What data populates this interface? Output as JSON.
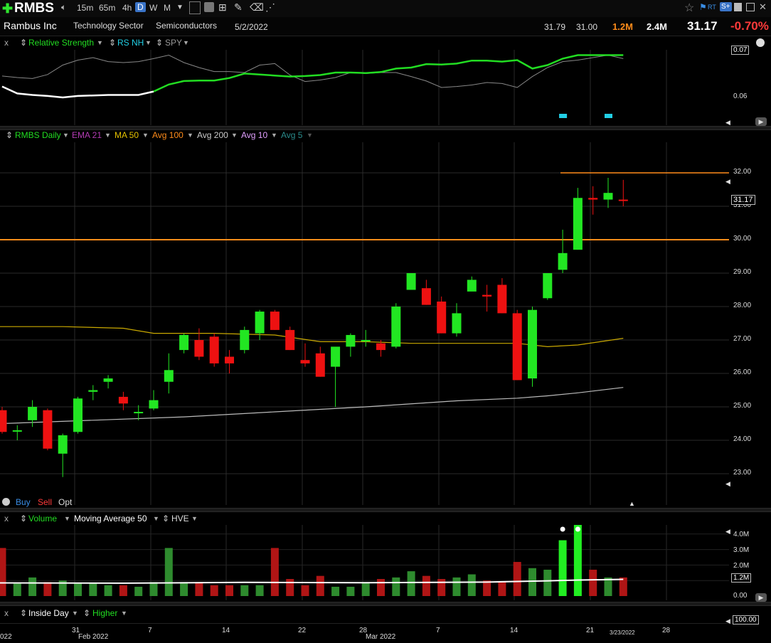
{
  "toolbar": {
    "symbol": "RMBS",
    "intervals": [
      "15m",
      "65m",
      "4h",
      "D",
      "W",
      "M"
    ],
    "active_interval": "D"
  },
  "info": {
    "company": "Rambus Inc",
    "sector": "Technology Sector",
    "industry": "Semiconductors",
    "date": "5/2/2022",
    "high": "31.79",
    "low": "31.00",
    "volume": "1.2M",
    "avg_volume": "2.4M",
    "last": "31.17",
    "change_pct": "-0.70%"
  },
  "rs_pane": {
    "close": "x",
    "title": "Relative Strength",
    "item2": "RS NH",
    "item3": "SPY",
    "labels": [
      "0.07",
      "0.06"
    ]
  },
  "price_pane": {
    "legend": [
      {
        "label": "RMBS Daily",
        "color": "#22dd22"
      },
      {
        "label": "EMA 21",
        "color": "#b43cb4"
      },
      {
        "label": "MA 50",
        "color": "#e6c200"
      },
      {
        "label": "Avg 100",
        "color": "#ff8c1a"
      },
      {
        "label": "Avg 200",
        "color": "#cccccc"
      },
      {
        "label": "Avg 10",
        "color": "#e2a0ff"
      },
      {
        "label": "Avg 5",
        "color": "#2a8c8c"
      }
    ],
    "price_labels": [
      "32.00",
      "31.00",
      "30.00",
      "29.00",
      "28.00",
      "27.00",
      "26.00",
      "25.00",
      "24.00",
      "23.00"
    ],
    "last_price": "31.17",
    "buy": "Buy",
    "sell": "Sell",
    "opt": "Opt"
  },
  "volume_pane": {
    "close": "x",
    "title": "Volume",
    "ma": "Moving Average 50",
    "hve": "HVE",
    "labels": [
      "4.0M",
      "3.0M",
      "2.0M",
      "1.2M",
      "0.00"
    ]
  },
  "inside_pane": {
    "close": "x",
    "title": "Inside Day",
    "higher": "Higher",
    "label": "100.00"
  },
  "x_axis": {
    "labels": [
      "022",
      "31",
      "Feb 2022",
      "7",
      "14",
      "22",
      "28",
      "Mar 2022",
      "7",
      "14",
      "21",
      "3/23/2022",
      "28"
    ]
  },
  "chart_data": {
    "type": "candlestick",
    "ylim": [
      22.5,
      33.0
    ],
    "candles": [
      [
        24.9,
        25.0,
        24.2,
        24.25
      ],
      [
        24.3,
        24.45,
        24.0,
        24.3
      ],
      [
        24.6,
        25.2,
        24.4,
        25.0
      ],
      [
        24.9,
        24.95,
        23.7,
        23.75
      ],
      [
        23.6,
        24.2,
        22.9,
        24.15
      ],
      [
        24.25,
        25.3,
        24.2,
        25.25
      ],
      [
        25.45,
        25.65,
        25.2,
        25.5
      ],
      [
        25.75,
        25.95,
        25.55,
        25.85
      ],
      [
        25.3,
        25.45,
        24.9,
        25.1
      ],
      [
        24.85,
        25.05,
        24.6,
        24.85
      ],
      [
        24.95,
        25.5,
        24.9,
        25.2
      ],
      [
        25.75,
        26.6,
        25.4,
        26.1
      ],
      [
        26.7,
        27.2,
        26.6,
        27.15
      ],
      [
        27.0,
        27.35,
        26.4,
        26.5
      ],
      [
        27.1,
        27.2,
        26.2,
        26.3
      ],
      [
        26.5,
        26.7,
        26.0,
        26.3
      ],
      [
        26.7,
        27.4,
        26.6,
        27.3
      ],
      [
        27.2,
        27.9,
        27.0,
        27.85
      ],
      [
        27.85,
        27.9,
        27.3,
        27.3
      ],
      [
        27.3,
        27.4,
        26.7,
        26.7
      ],
      [
        26.4,
        26.9,
        26.2,
        26.3
      ],
      [
        26.6,
        26.8,
        25.9,
        25.9
      ],
      [
        26.2,
        26.75,
        25.0,
        26.8
      ],
      [
        26.8,
        27.2,
        26.5,
        27.15
      ],
      [
        27.0,
        27.3,
        26.8,
        27.0
      ],
      [
        26.9,
        27.0,
        26.5,
        26.7
      ],
      [
        26.8,
        28.1,
        26.75,
        28.0
      ],
      [
        28.5,
        29.0,
        28.5,
        29.0
      ],
      [
        28.55,
        28.8,
        28.05,
        28.05
      ],
      [
        28.15,
        28.3,
        27.2,
        27.2
      ],
      [
        27.2,
        28.1,
        27.1,
        27.8
      ],
      [
        28.45,
        28.9,
        28.5,
        28.8
      ],
      [
        28.35,
        28.65,
        27.85,
        28.3
      ],
      [
        28.65,
        28.85,
        27.8,
        27.8
      ],
      [
        27.8,
        27.9,
        25.8,
        25.8
      ],
      [
        25.85,
        28.0,
        25.6,
        27.9
      ],
      [
        28.25,
        29.0,
        28.2,
        29.0
      ],
      [
        29.1,
        30.3,
        29.0,
        29.6
      ],
      [
        29.7,
        31.55,
        29.7,
        31.25
      ],
      [
        31.25,
        31.6,
        30.75,
        31.2
      ],
      [
        31.2,
        31.85,
        30.95,
        31.4
      ],
      [
        31.2,
        31.79,
        31.0,
        31.17
      ]
    ],
    "ma50": [
      [
        0,
        27.4
      ],
      [
        4,
        27.4
      ],
      [
        8,
        27.35
      ],
      [
        10,
        27.2
      ],
      [
        14,
        27.2
      ],
      [
        18,
        27.15
      ],
      [
        21,
        26.95
      ],
      [
        24,
        26.95
      ],
      [
        27,
        26.9
      ],
      [
        30,
        26.9
      ],
      [
        34,
        26.9
      ],
      [
        36,
        26.8
      ],
      [
        38,
        26.85
      ],
      [
        41,
        27.05
      ]
    ],
    "ma200": [
      [
        0,
        24.5
      ],
      [
        6,
        24.6
      ],
      [
        12,
        24.7
      ],
      [
        18,
        24.85
      ],
      [
        24,
        25.0
      ],
      [
        30,
        25.18
      ],
      [
        34,
        25.26
      ],
      [
        36,
        25.33
      ],
      [
        38,
        25.42
      ],
      [
        41,
        25.58
      ]
    ],
    "avg100_line": {
      "value": 30.0
    },
    "resistance_line": {
      "value": 32.0
    },
    "volume_millions": [
      3.1,
      0.8,
      1.2,
      0.9,
      1.0,
      0.8,
      0.8,
      0.7,
      0.7,
      0.6,
      0.9,
      3.1,
      0.9,
      0.9,
      0.7,
      0.7,
      0.7,
      0.7,
      3.1,
      1.1,
      0.7,
      1.3,
      0.6,
      0.6,
      0.9,
      1.1,
      1.2,
      1.6,
      1.3,
      1.1,
      1.2,
      1.4,
      1.0,
      0.9,
      2.2,
      1.8,
      1.7,
      3.6,
      4.6,
      1.7,
      1.2,
      1.2
    ],
    "rs_line": [
      0.62,
      0.48,
      0.45,
      0.43,
      0.4,
      0.43,
      0.44,
      0.45,
      0.45,
      0.45,
      0.52,
      0.66,
      0.73,
      0.74,
      0.74,
      0.79,
      0.88,
      0.86,
      0.84,
      0.82,
      0.83,
      0.85,
      0.9,
      0.9,
      0.89,
      0.91,
      0.98,
      1.0,
      1.07,
      1.06,
      1.08,
      1.14,
      1.14,
      1.12,
      1.15,
      0.98,
      1.05,
      1.18,
      1.25,
      1.25,
      1.25,
      1.25
    ],
    "spy_line": [
      0.83,
      0.8,
      0.78,
      0.86,
      1.05,
      1.15,
      1.2,
      1.12,
      1.1,
      1.12,
      1.18,
      1.25,
      1.1,
      1.0,
      0.92,
      0.92,
      0.9,
      1.05,
      1.08,
      0.85,
      0.72,
      0.75,
      0.8,
      0.9,
      0.88,
      0.9,
      0.9,
      0.82,
      0.73,
      0.6,
      0.62,
      0.65,
      0.7,
      0.68,
      0.6,
      0.82,
      1.0,
      1.12,
      1.15,
      1.2,
      1.25,
      1.18
    ]
  }
}
